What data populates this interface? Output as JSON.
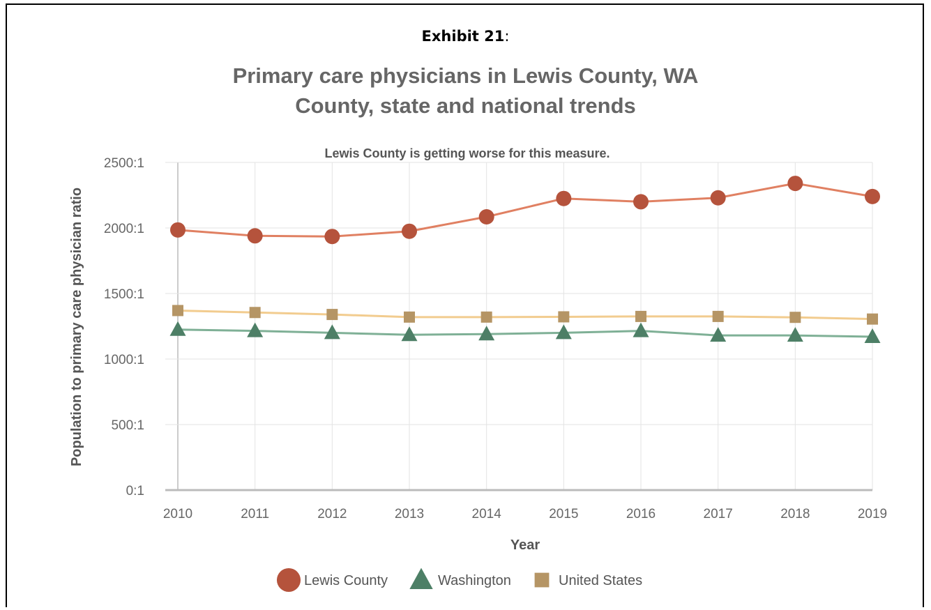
{
  "header": {
    "exhibit_label": "Exhibit 21",
    "exhibit_suffix": ":",
    "title_line1": "Primary care physicians in Lewis County, WA",
    "title_line2": "County, state and national trends"
  },
  "chart_data": {
    "type": "line",
    "subtitle": "Lewis County is getting worse for this measure.",
    "xlabel": "Year",
    "ylabel": "Population to primary care physician ratio",
    "categories": [
      "2010",
      "2011",
      "2012",
      "2013",
      "2014",
      "2015",
      "2016",
      "2017",
      "2018",
      "2019"
    ],
    "ylim": [
      0,
      2500
    ],
    "yticks": [
      0,
      500,
      1000,
      1500,
      2000,
      2500
    ],
    "ytick_labels": [
      "0:1",
      "500:1",
      "1000:1",
      "1500:1",
      "2000:1",
      "2500:1"
    ],
    "grid": true,
    "legend_position": "bottom",
    "series": [
      {
        "name": "Lewis County",
        "marker": "circle",
        "line_color": "#e08062",
        "marker_color": "#b5533c",
        "values": [
          1985,
          1940,
          1935,
          1975,
          2085,
          2225,
          2200,
          2230,
          2340,
          2240
        ]
      },
      {
        "name": "Washington",
        "marker": "triangle",
        "line_color": "#7fb096",
        "marker_color": "#4d7f66",
        "values": [
          1225,
          1215,
          1200,
          1185,
          1190,
          1200,
          1215,
          1180,
          1180,
          1170
        ]
      },
      {
        "name": "United States",
        "marker": "square",
        "line_color": "#f2cc8f",
        "marker_color": "#b59565",
        "values": [
          1370,
          1355,
          1340,
          1320,
          1320,
          1322,
          1325,
          1325,
          1318,
          1305
        ]
      }
    ]
  }
}
